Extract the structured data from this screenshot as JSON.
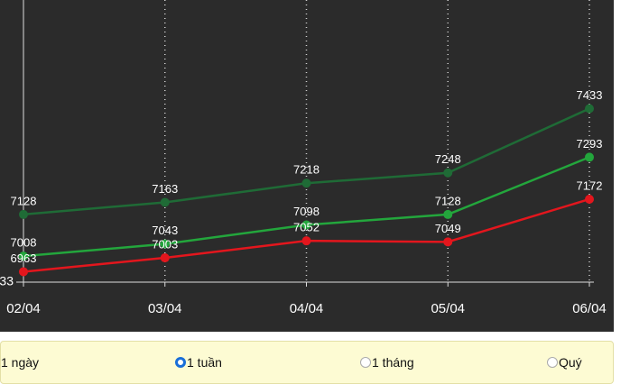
{
  "chart_data": {
    "type": "line",
    "categories": [
      "02/04",
      "03/04",
      "04/04",
      "05/04",
      "06/04"
    ],
    "series": [
      {
        "color": "#1f6b36",
        "values": [
          7128,
          7163,
          7218,
          7248,
          7433
        ]
      },
      {
        "color": "#23a63c",
        "values": [
          7008,
          7043,
          7098,
          7128,
          7293
        ]
      },
      {
        "color": "#e3161d",
        "values": [
          6963,
          7003,
          7052,
          7049,
          7172
        ]
      }
    ],
    "ylim": [
      6933,
      7746
    ],
    "yticks": [
      {
        "value": 6933,
        "label": "33"
      }
    ],
    "grid": true
  },
  "period_options": [
    "1 ngày",
    "1 tuần",
    "1 tháng",
    "Quý"
  ]
}
